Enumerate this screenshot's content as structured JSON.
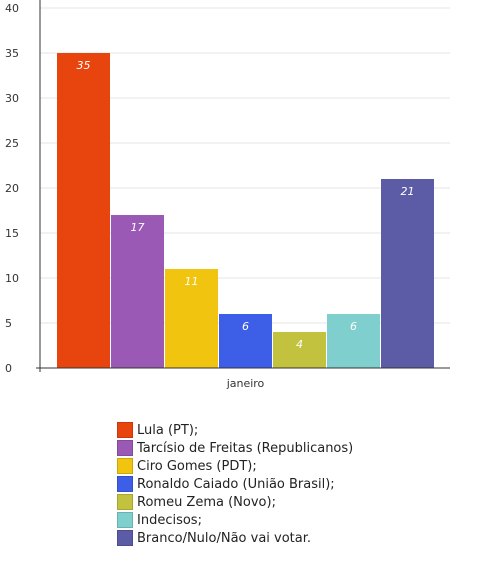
{
  "chart_data": {
    "type": "bar",
    "categories": [
      "janeiro"
    ],
    "series": [
      {
        "name": "Lula (PT);",
        "values": [
          35
        ],
        "color": "#E8440E"
      },
      {
        "name": "Tarcísio de Freitas (Republicanos)",
        "values": [
          17
        ],
        "color": "#9B59B6"
      },
      {
        "name": "Ciro Gomes (PDT);",
        "values": [
          11
        ],
        "color": "#F1C40F"
      },
      {
        "name": "Ronaldo Caiado (União Brasil);",
        "values": [
          6
        ],
        "color": "#3D5FE8"
      },
      {
        "name": "Romeu Zema (Novo);",
        "values": [
          4
        ],
        "color": "#C3C23F"
      },
      {
        "name": "Indecisos;",
        "values": [
          6
        ],
        "color": "#80CFCF"
      },
      {
        "name": "Branco/Nulo/Não vai votar.",
        "values": [
          21
        ],
        "color": "#5B5BA6"
      }
    ],
    "data_labels": [
      "35",
      "17",
      "11",
      "6",
      "4",
      "6",
      "21"
    ],
    "y_ticks": [
      "0",
      "5",
      "10",
      "15",
      "20",
      "25",
      "30",
      "35",
      "40"
    ],
    "ylim": [
      0,
      40
    ],
    "grid": true,
    "legend_position": "bottom"
  }
}
